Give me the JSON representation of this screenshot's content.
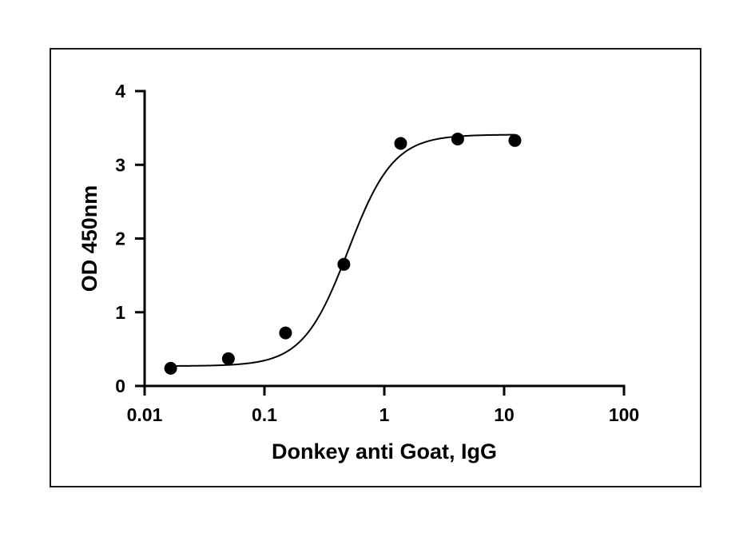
{
  "chart_data": {
    "type": "scatter",
    "title": "",
    "xlabel": "Donkey anti Goat, IgG",
    "ylabel": "OD 450nm",
    "xscale": "log",
    "xlim": [
      0.01,
      100
    ],
    "ylim": [
      0,
      4
    ],
    "xticks": [
      0.01,
      0.1,
      1,
      10,
      100
    ],
    "xtick_labels": [
      "0.01",
      "0.1",
      "1",
      "10",
      "100"
    ],
    "yticks": [
      0,
      1,
      2,
      3,
      4
    ],
    "ytick_labels": [
      "0",
      "1",
      "2",
      "3",
      "4"
    ],
    "grid": false,
    "legend": "none",
    "series": [
      {
        "values": [
          {
            "x": 0.0165,
            "y": 0.24
          },
          {
            "x": 0.05,
            "y": 0.37
          },
          {
            "x": 0.15,
            "y": 0.72
          },
          {
            "x": 0.46,
            "y": 1.65
          },
          {
            "x": 1.37,
            "y": 3.29
          },
          {
            "x": 4.1,
            "y": 3.35
          },
          {
            "x": 12.3,
            "y": 3.33
          }
        ],
        "color": "#000000",
        "marker": "circle"
      }
    ],
    "fit_curve": {
      "model": "4PL",
      "bottom": 0.27,
      "top": 3.41,
      "ec50": 0.5,
      "hill": 2.3,
      "color": "#000000"
    }
  }
}
